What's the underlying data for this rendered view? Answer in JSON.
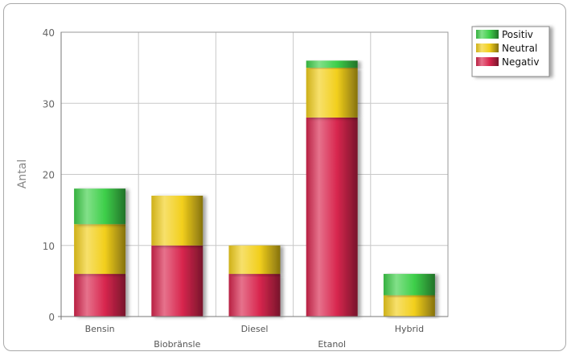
{
  "chart_data": {
    "type": "bar",
    "stacked": true,
    "categories": [
      "Bensin",
      "Biobränsle",
      "Diesel",
      "Etanol",
      "Hybrid"
    ],
    "series": [
      {
        "name": "Negativ",
        "values": [
          6,
          10,
          6,
          28,
          0
        ],
        "color": "#d8264e"
      },
      {
        "name": "Neutral",
        "values": [
          7,
          7,
          4,
          7,
          3
        ],
        "color": "#f2cf1c"
      },
      {
        "name": "Positiv",
        "values": [
          5,
          0,
          0,
          1,
          3
        ],
        "color": "#3ecf4a"
      }
    ],
    "legend_order": [
      "Positiv",
      "Neutral",
      "Negativ"
    ],
    "legend_position": "top-right",
    "ylabel": "Antal",
    "xlabel": "",
    "ylim": [
      0,
      40
    ],
    "yticks": [
      "0",
      "10",
      "20",
      "30",
      "40"
    ],
    "grid": true
  }
}
